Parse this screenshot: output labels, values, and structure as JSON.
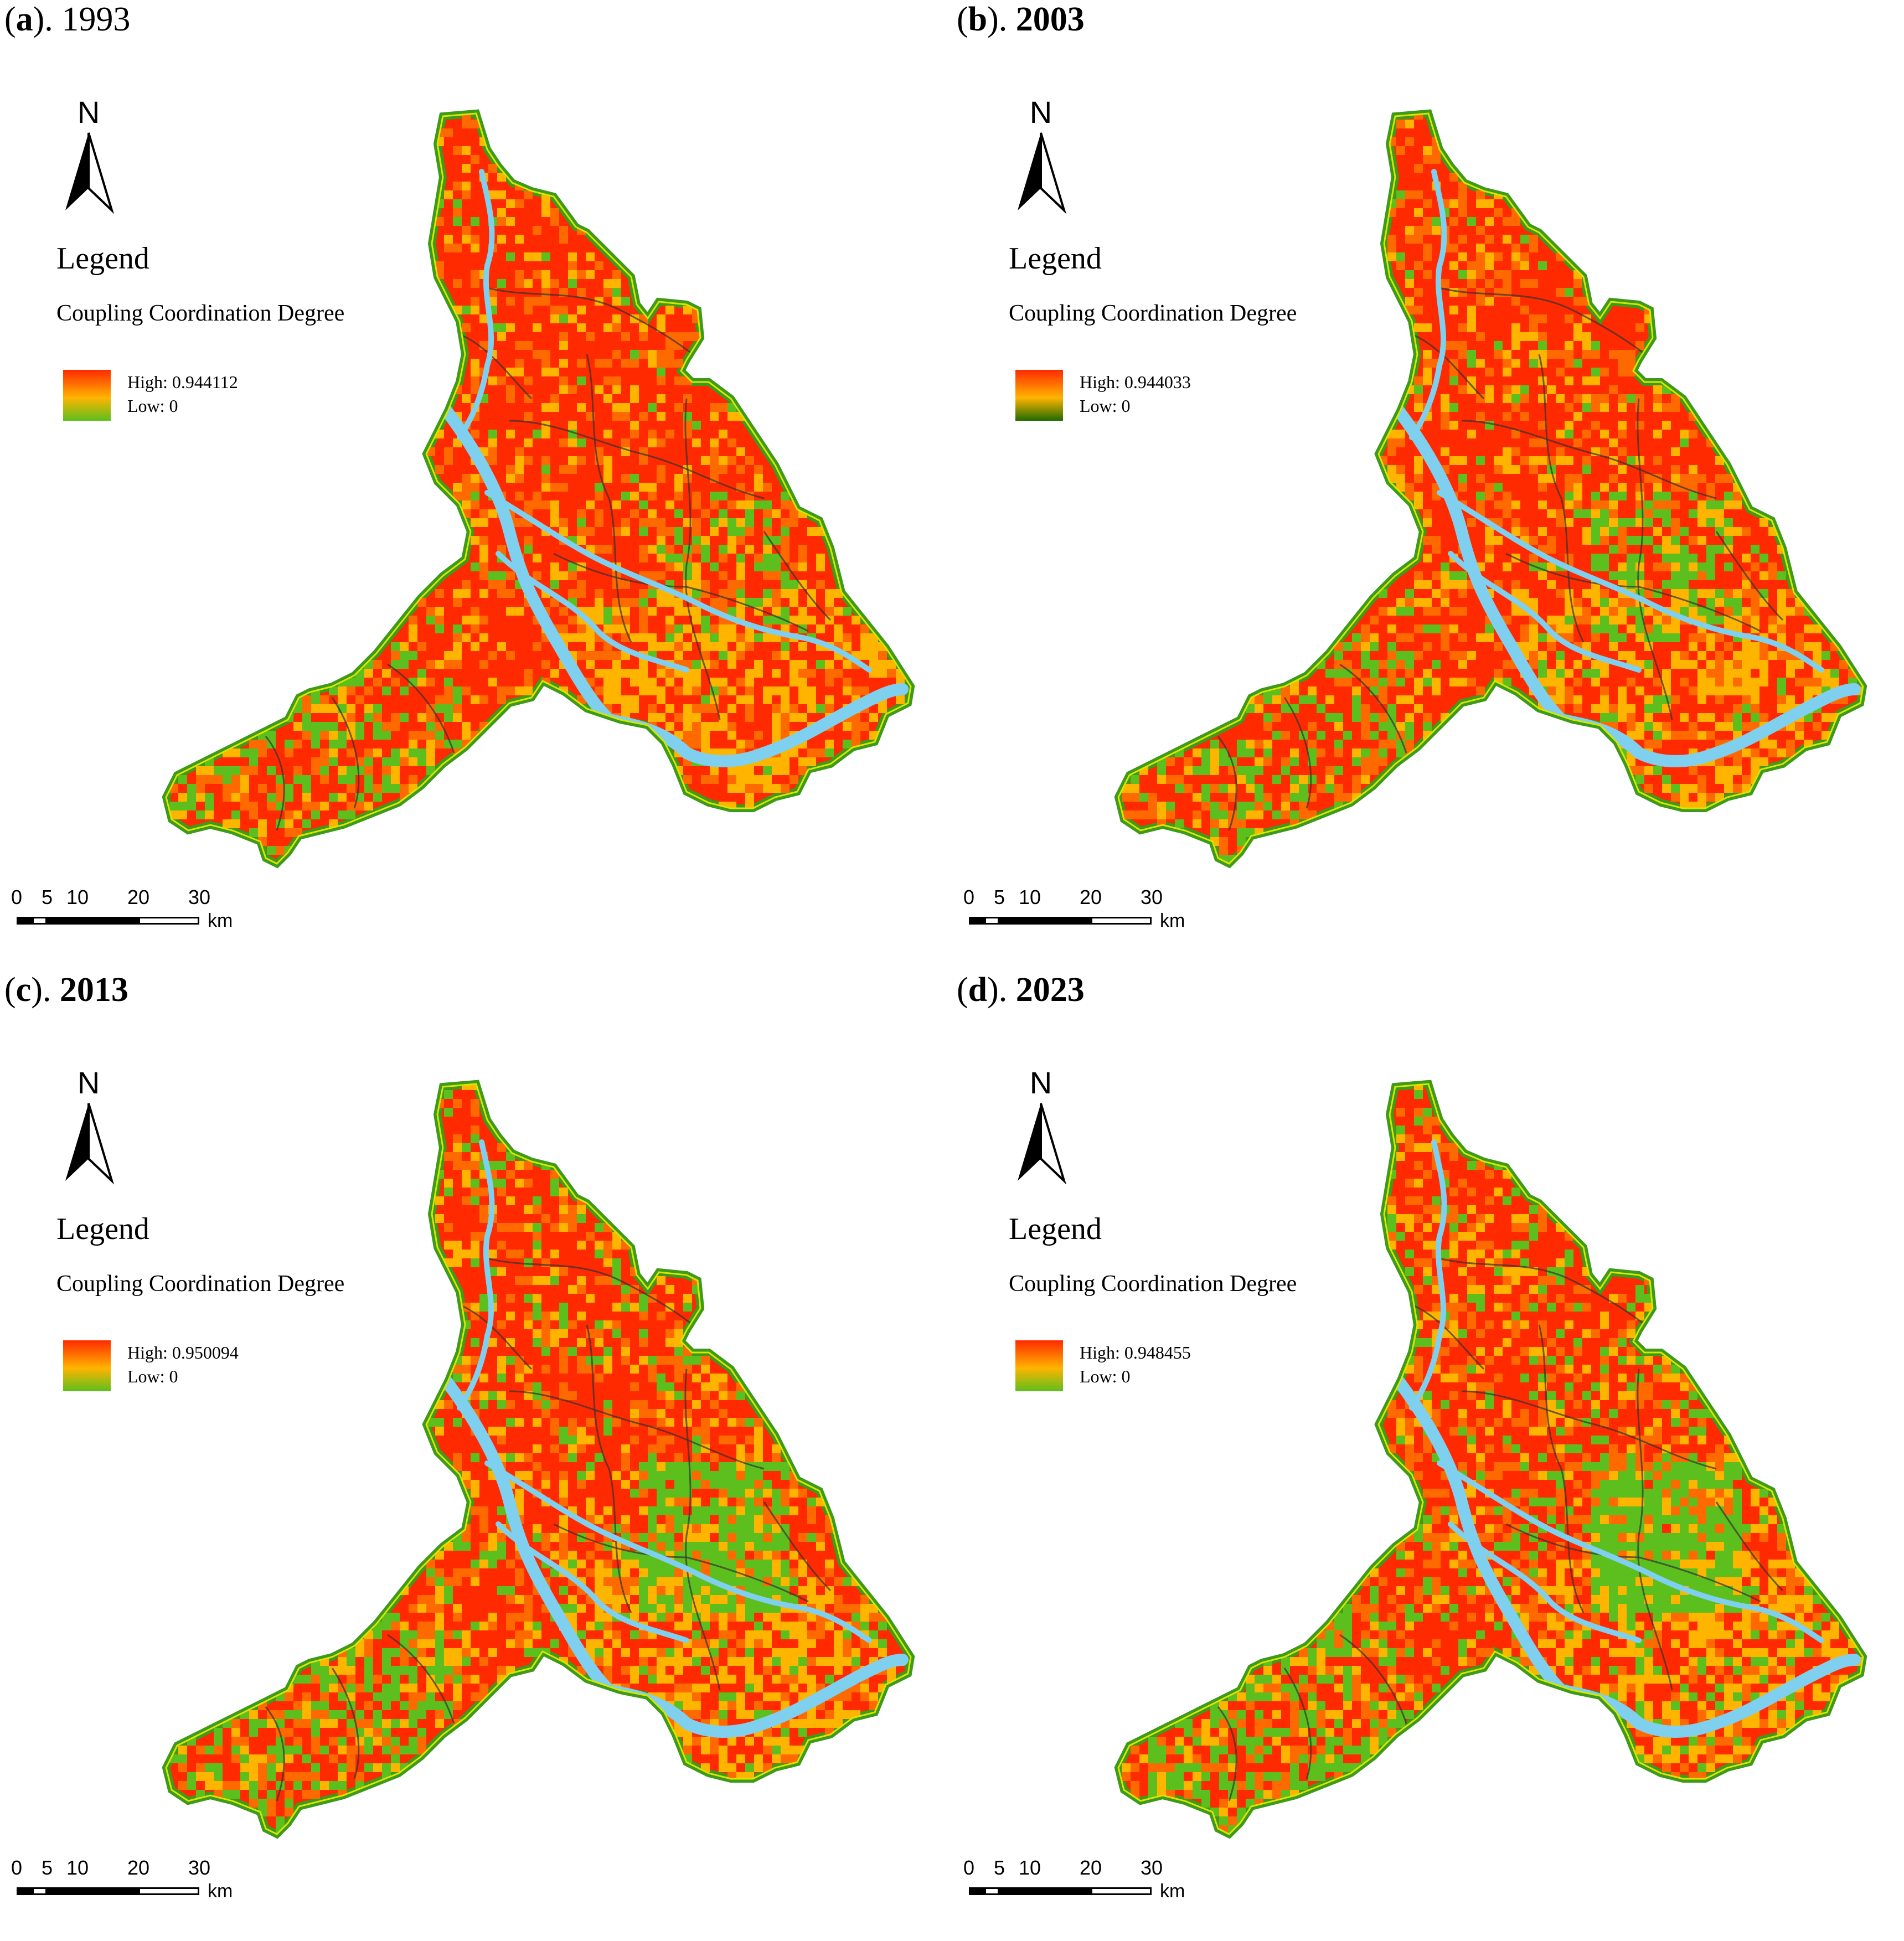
{
  "panels": [
    {
      "label": "a",
      "year": "1993",
      "high": "High: 0.944112",
      "low": "Low: 0",
      "green_level": 0.1,
      "dark_legend": false,
      "bold_year": false
    },
    {
      "label": "b",
      "year": "2003",
      "high": "High: 0.944033",
      "low": "Low: 0",
      "green_level": 0.14,
      "dark_legend": true,
      "bold_year": true
    },
    {
      "label": "c",
      "year": "2013",
      "high": "High: 0.950094",
      "low": "Low: 0",
      "green_level": 0.26,
      "dark_legend": false,
      "bold_year": true
    },
    {
      "label": "d",
      "year": "2023",
      "high": "High: 0.948455",
      "low": "Low: 0",
      "green_level": 0.32,
      "dark_legend": false,
      "bold_year": true
    }
  ],
  "north": "N",
  "legend_title": "Legend",
  "legend_subtitle": "Coupling Coordination Degree",
  "scale_bar": {
    "ticks": [
      "0",
      "5",
      "10",
      "20",
      "30"
    ],
    "unit": "km"
  },
  "colors": {
    "high": "#ff2a00",
    "mid": "#ffb400",
    "low": "#5dbf1e",
    "dark_low": "#1e6b00",
    "river": "#7fcfee",
    "edge_green": "#3e9a1a"
  }
}
